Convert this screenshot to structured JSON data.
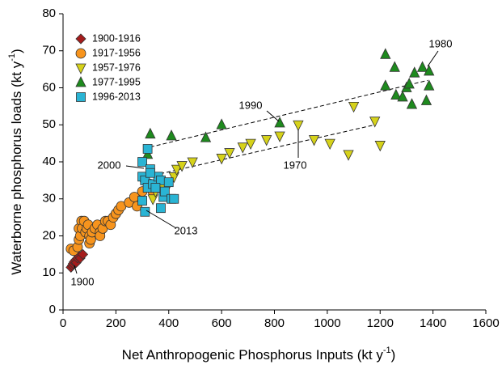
{
  "chart_data": {
    "type": "scatter",
    "xlabel": [
      "Net Anthropogenic Phosphorus Inputs (kt y",
      "-1",
      ")"
    ],
    "ylabel": [
      "Waterborne phosphorus loads (kt y",
      "-1",
      ")"
    ],
    "xlim": [
      0,
      1600
    ],
    "xticks": [
      0,
      200,
      400,
      600,
      800,
      1000,
      1200,
      1400,
      1600
    ],
    "ylim": [
      0,
      80
    ],
    "yticks": [
      0,
      10,
      20,
      30,
      40,
      50,
      60,
      70,
      80
    ],
    "legend": "top-left",
    "series": [
      {
        "name": "1900-1916",
        "color": "#a51c1c",
        "marker": "diamond",
        "x": [
          30,
          35,
          38,
          42,
          48,
          50,
          55,
          60,
          65,
          75
        ],
        "values": [
          11.5,
          12,
          12.5,
          13,
          13.5,
          12.8,
          14,
          14.5,
          14,
          15
        ]
      },
      {
        "name": "1917-1956",
        "color": "#f7941d",
        "marker": "circle",
        "x": [
          30,
          40,
          55,
          60,
          60,
          65,
          70,
          72,
          80,
          85,
          90,
          95,
          100,
          100,
          105,
          110,
          120,
          130,
          140,
          140,
          150,
          160,
          170,
          180,
          190,
          200,
          210,
          220,
          250,
          270,
          280,
          300,
          310,
          330,
          340
        ],
        "values": [
          16.5,
          16,
          17,
          19,
          22,
          20,
          24,
          22,
          24,
          21,
          22,
          23,
          20,
          18,
          19,
          21,
          22,
          23,
          21,
          20,
          22,
          24,
          24,
          23,
          25,
          26,
          27,
          28,
          29,
          30.5,
          28,
          32,
          35,
          34,
          32
        ]
      },
      {
        "name": "1957-1976",
        "color": "#d6d21a",
        "marker": "triangle-down",
        "x": [
          340,
          350,
          380,
          400,
          420,
          430,
          450,
          490,
          600,
          630,
          680,
          710,
          770,
          820,
          890,
          950,
          1010,
          1080,
          1100,
          1180,
          1200
        ],
        "values": [
          30,
          32,
          33,
          34,
          36,
          38,
          39,
          40,
          41,
          42.5,
          44,
          45,
          46,
          47,
          50,
          46,
          45,
          42,
          55,
          51,
          44.5
        ]
      },
      {
        "name": "1977-1995",
        "color": "#1e8a1e",
        "marker": "triangle-up",
        "x": [
          320,
          330,
          410,
          540,
          600,
          820,
          1220,
          1220,
          1255,
          1260,
          1285,
          1300,
          1310,
          1320,
          1330,
          1360,
          1375,
          1385,
          1385
        ],
        "values": [
          42,
          47.5,
          47,
          46.5,
          50,
          50.5,
          69,
          60.5,
          65.5,
          58,
          57.5,
          60,
          61,
          55.5,
          64,
          65.5,
          56.5,
          64.5,
          60.5
        ]
      },
      {
        "name": "1996-2013",
        "color": "#2ab4d4",
        "marker": "square",
        "x": [
          300,
          320,
          300,
          310,
          330,
          320,
          340,
          360,
          370,
          380,
          385,
          400,
          410,
          420,
          370,
          310,
          330,
          300,
          350
        ],
        "values": [
          40,
          43.5,
          36,
          35,
          38,
          33,
          34,
          36,
          35,
          30.5,
          32,
          34.5,
          30,
          30,
          27.5,
          26.5,
          37,
          29.5,
          33
        ]
      }
    ],
    "trend_lines": [
      {
        "x": [
          330,
          1380
        ],
        "values": [
          44,
          62
        ]
      },
      {
        "x": [
          320,
          1180
        ],
        "values": [
          36,
          50
        ]
      }
    ],
    "annotations": [
      "1900",
      "2013",
      "2000",
      "1990",
      "1970",
      "1980"
    ]
  }
}
